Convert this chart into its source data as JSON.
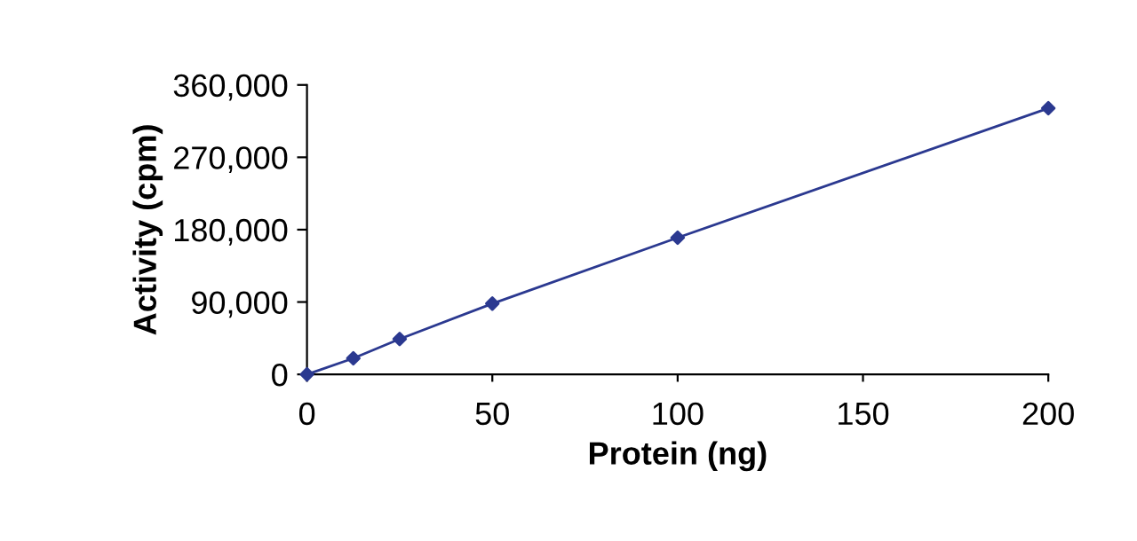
{
  "chart_data": {
    "type": "line",
    "xlabel": "Protein (ng)",
    "ylabel": "Activity (cpm)",
    "x": [
      0,
      12.5,
      25,
      50,
      100,
      200
    ],
    "series": [
      {
        "color": "#2b3990",
        "values": [
          0,
          20000,
          44000,
          88000,
          170000,
          331000
        ]
      }
    ],
    "xlim": [
      0,
      200
    ],
    "xticks": [
      0,
      50,
      100,
      150,
      200
    ],
    "ylim": [
      0,
      360000
    ],
    "yticks": [
      {
        "value": 0,
        "label": "0"
      },
      {
        "value": 90000,
        "label": "90,000"
      },
      {
        "value": 180000,
        "label": "180,000"
      },
      {
        "value": 270000,
        "label": "270,000"
      },
      {
        "value": 360000,
        "label": "360,000"
      }
    ],
    "marker": "diamond",
    "line_style": "solid",
    "grid": false,
    "legend": false
  }
}
